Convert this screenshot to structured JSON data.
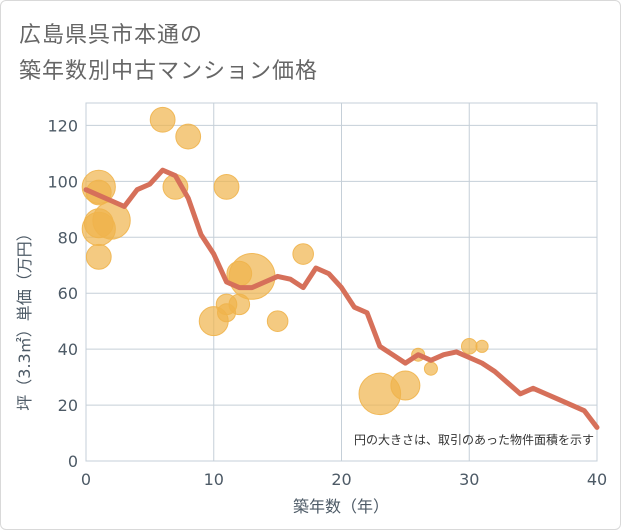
{
  "title_line1": "広島県呉市本通の",
  "title_line2": "築年数別中古マンション価格",
  "chart_data": {
    "type": "scatter",
    "xlabel": "築年数（年）",
    "ylabel": "坪（3.3㎡）単価（万円）",
    "xlim": [
      0,
      40
    ],
    "ylim": [
      0,
      128
    ],
    "x_ticks": [
      "0",
      "10",
      "20",
      "30",
      "40"
    ],
    "y_ticks": [
      "0",
      "20",
      "40",
      "60",
      "80",
      "100",
      "120"
    ],
    "grid": true,
    "note": "円の大きさは、取引のあった物件面積を示す",
    "colors": {
      "bubble": "#f0b44c",
      "line": "#d6705a",
      "grid": "#c5cfd8"
    },
    "bubbles": [
      {
        "x": 1,
        "y": 98,
        "size": 3
      },
      {
        "x": 1,
        "y": 96,
        "size": 2
      },
      {
        "x": 1,
        "y": 83,
        "size": 3
      },
      {
        "x": 1,
        "y": 85,
        "size": 2.5
      },
      {
        "x": 1,
        "y": 73,
        "size": 2
      },
      {
        "x": 2,
        "y": 86,
        "size": 3.5
      },
      {
        "x": 6,
        "y": 122,
        "size": 2
      },
      {
        "x": 7,
        "y": 98,
        "size": 2
      },
      {
        "x": 8,
        "y": 116,
        "size": 2
      },
      {
        "x": 10,
        "y": 50,
        "size": 2.5
      },
      {
        "x": 11,
        "y": 98,
        "size": 2
      },
      {
        "x": 11,
        "y": 56,
        "size": 1.5
      },
      {
        "x": 11,
        "y": 53,
        "size": 1.2
      },
      {
        "x": 12,
        "y": 67,
        "size": 2
      },
      {
        "x": 12,
        "y": 56,
        "size": 1.5
      },
      {
        "x": 13,
        "y": 66,
        "size": 4.5
      },
      {
        "x": 15,
        "y": 50,
        "size": 1.5
      },
      {
        "x": 17,
        "y": 74,
        "size": 1.5
      },
      {
        "x": 23,
        "y": 24,
        "size": 4
      },
      {
        "x": 25,
        "y": 27,
        "size": 2.5
      },
      {
        "x": 26,
        "y": 38,
        "size": 0.6
      },
      {
        "x": 27,
        "y": 33,
        "size": 0.6
      },
      {
        "x": 30,
        "y": 41,
        "size": 0.9
      },
      {
        "x": 31,
        "y": 41,
        "size": 0.5
      }
    ],
    "series": [
      {
        "x": [
          0,
          1,
          2,
          3,
          4,
          5,
          6,
          7,
          8,
          9,
          10,
          11,
          12,
          13,
          14,
          15,
          16,
          17,
          18,
          19,
          20,
          21,
          22,
          23,
          24,
          25,
          26,
          27,
          28,
          29,
          30,
          31,
          32,
          33,
          34,
          35,
          36,
          37,
          38,
          39,
          40
        ],
        "y": [
          97,
          95,
          93,
          91,
          97,
          99,
          104,
          102,
          94,
          81,
          74,
          64,
          62,
          62,
          64,
          66,
          65,
          62,
          69,
          67,
          62,
          55,
          53,
          41,
          38,
          35,
          38,
          36,
          38,
          39,
          37,
          35,
          32,
          28,
          24,
          26,
          24,
          22,
          20,
          18,
          12
        ]
      }
    ]
  }
}
